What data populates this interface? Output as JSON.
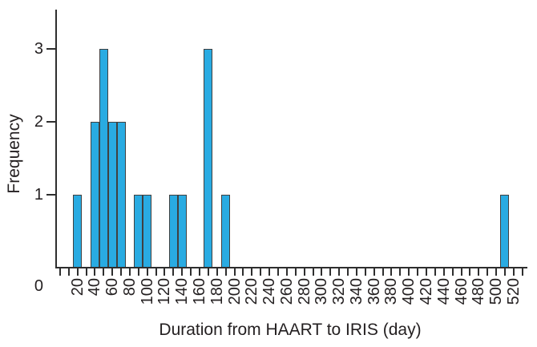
{
  "chart_data": {
    "type": "bar",
    "subtype": "histogram",
    "title": "",
    "xlabel": "Duration from HAART to IRIS (day)",
    "ylabel": "Frequency",
    "bin_width": 10,
    "bars": [
      {
        "center": 20,
        "count": 1
      },
      {
        "center": 40,
        "count": 2
      },
      {
        "center": 50,
        "count": 3
      },
      {
        "center": 60,
        "count": 2
      },
      {
        "center": 70,
        "count": 2
      },
      {
        "center": 90,
        "count": 1
      },
      {
        "center": 100,
        "count": 1
      },
      {
        "center": 130,
        "count": 1
      },
      {
        "center": 140,
        "count": 1
      },
      {
        "center": 170,
        "count": 3
      },
      {
        "center": 190,
        "count": 1
      },
      {
        "center": 510,
        "count": 1
      }
    ],
    "x_axis": {
      "tick_min": 0,
      "tick_max": 530,
      "tick_step": 10,
      "labeled_ticks": [
        20,
        40,
        60,
        80,
        100,
        120,
        140,
        160,
        180,
        200,
        220,
        240,
        260,
        280,
        300,
        320,
        340,
        360,
        380,
        400,
        420,
        440,
        460,
        480,
        500,
        520
      ]
    },
    "y_axis": {
      "ticks": [
        {
          "value": 1,
          "label": "1"
        },
        {
          "value": 2,
          "label": "2"
        },
        {
          "value": 3,
          "label": "3"
        }
      ],
      "zero_label": "0",
      "ylim": [
        0,
        3.55
      ]
    },
    "grid": false,
    "legend": null,
    "colors": {
      "bar_fill": "#29ABE2",
      "bar_stroke": "#404040",
      "axis": "#2e2e2e",
      "text": "#231f20"
    }
  }
}
